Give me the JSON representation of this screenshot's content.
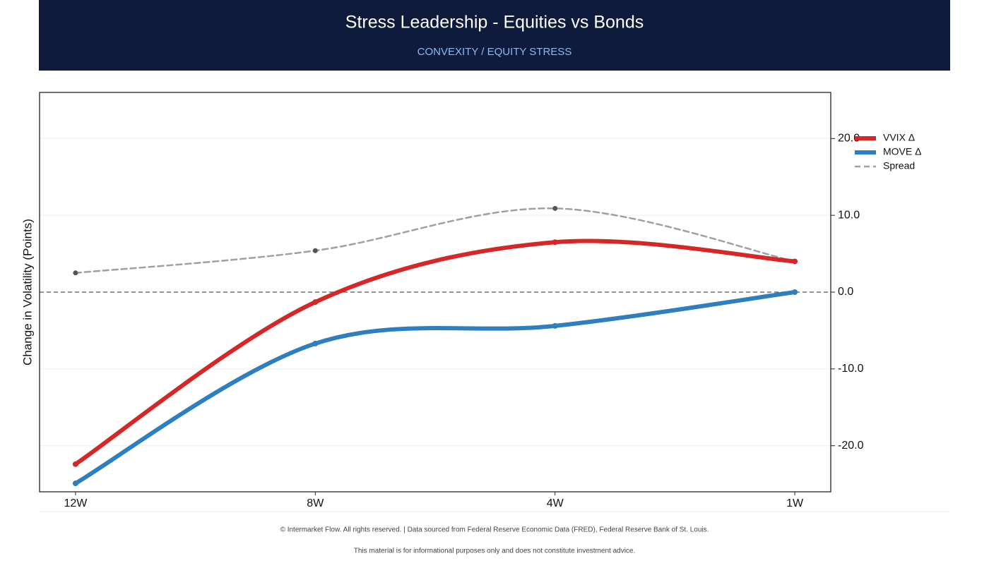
{
  "chart_data": {
    "type": "line",
    "title": "Stress Leadership - Equities vs Bonds",
    "subtitle": "CONVEXITY / EQUITY STRESS",
    "y_label": "Change in Volatility (Points)",
    "categories": [
      "12W",
      "8W",
      "4W",
      "1W"
    ],
    "series": [
      {
        "name": "VVIX Δ",
        "color": "#d62728",
        "values": [
          -22.4,
          -1.3,
          6.5,
          4.0
        ]
      },
      {
        "name": "MOVE Δ",
        "color": "#2e7fbf",
        "values": [
          -24.9,
          -6.7,
          -4.4,
          0.0
        ]
      },
      {
        "name": "Spread",
        "color": "#a0a0a0",
        "dashed": true,
        "values": [
          2.5,
          5.4,
          10.9,
          4.0
        ]
      }
    ],
    "ylim": [
      -26,
      26
    ],
    "yticks": [
      {
        "value": -20,
        "label": "-20.0"
      },
      {
        "value": -10,
        "label": "-10.0"
      },
      {
        "value": 0,
        "label": "0.0"
      },
      {
        "value": 10,
        "label": "10.0"
      },
      {
        "value": 20,
        "label": "20.0"
      }
    ],
    "grid": true,
    "legend": "upper-right"
  },
  "footer": {
    "line1": "© Intermarket Flow. All rights reserved.  |  Data sourced from Federal Reserve Economic Data (FRED), Federal Reserve Bank of St. Louis.",
    "line2": "This material is for informational purposes only and does not constitute investment advice."
  }
}
